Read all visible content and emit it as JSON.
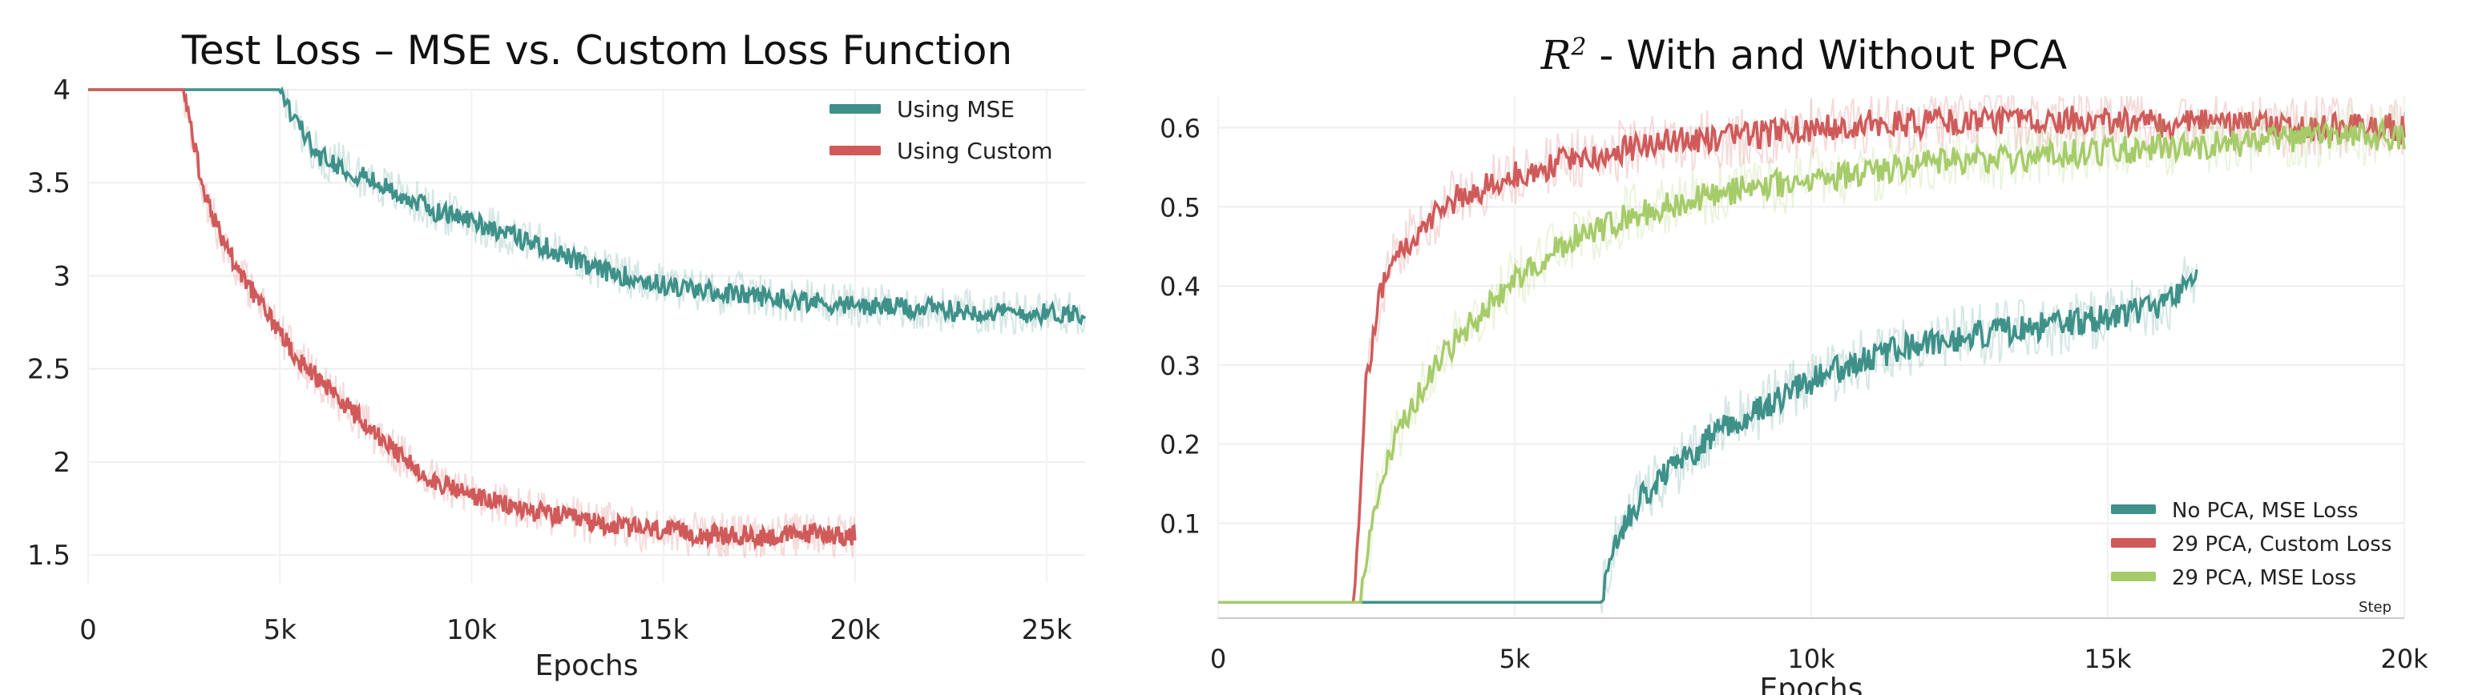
{
  "charts": {
    "left": {
      "title": "Test Loss – MSE vs. Custom Loss Function"
    },
    "right": {
      "title_math": "R",
      "title_sup": "2",
      "title_rest": " - With and Without PCA",
      "step_label": "Step"
    }
  },
  "colors": {
    "teal": "#3e9189",
    "red": "#d05a5a",
    "green": "#a6cc6a"
  },
  "chart_data": [
    {
      "type": "line",
      "title": "Test Loss – MSE vs. Custom Loss Function",
      "xlabel": "Epochs",
      "ylabel": "",
      "xlim": [
        0,
        26000
      ],
      "ylim": [
        1.35,
        4.0
      ],
      "xticks": [
        "0",
        "5k",
        "10k",
        "15k",
        "20k",
        "25k"
      ],
      "yticks": [
        "1.5",
        "2",
        "2.5",
        "3",
        "3.5",
        "4"
      ],
      "grid": true,
      "legend_position": "top-right",
      "series": [
        {
          "name": "Using MSE",
          "color": "#3e9189",
          "x": [
            0,
            5000,
            5500,
            6000,
            7000,
            8000,
            9000,
            10000,
            11000,
            12000,
            13000,
            14000,
            15000,
            16000,
            17000,
            18000,
            19000,
            20000,
            22000,
            24000,
            26000
          ],
          "y": [
            4.0,
            4.0,
            3.8,
            3.65,
            3.55,
            3.45,
            3.35,
            3.3,
            3.22,
            3.15,
            3.05,
            3.0,
            2.95,
            2.92,
            2.9,
            2.88,
            2.86,
            2.84,
            2.82,
            2.8,
            2.8
          ]
        },
        {
          "name": "Using Custom",
          "color": "#d05a5a",
          "x": [
            0,
            2500,
            3000,
            3500,
            4000,
            4500,
            5000,
            5500,
            6000,
            7000,
            8000,
            9000,
            10000,
            11000,
            12000,
            13000,
            14000,
            15000,
            16000,
            17000,
            18000,
            19000,
            20000
          ],
          "y": [
            4.0,
            4.0,
            3.45,
            3.2,
            3.0,
            2.85,
            2.7,
            2.55,
            2.45,
            2.25,
            2.05,
            1.9,
            1.82,
            1.76,
            1.72,
            1.68,
            1.65,
            1.63,
            1.61,
            1.6,
            1.6,
            1.62,
            1.6
          ]
        }
      ]
    },
    {
      "type": "line",
      "title": "R^2 - With and Without PCA",
      "xlabel": "Epochs",
      "ylabel": "",
      "xlim": [
        0,
        20000
      ],
      "ylim": [
        -0.02,
        0.64
      ],
      "xticks": [
        "0",
        "5k",
        "10k",
        "15k",
        "20k"
      ],
      "yticks": [
        "0.1",
        "0.2",
        "0.3",
        "0.4",
        "0.5",
        "0.6"
      ],
      "grid": true,
      "legend_position": "bottom-right",
      "series": [
        {
          "name": "No PCA, MSE Loss",
          "color": "#3e9189",
          "x": [
            0,
            6450,
            6600,
            7000,
            7500,
            8000,
            8500,
            9000,
            10000,
            11000,
            12000,
            13000,
            14000,
            15000,
            16000,
            16500
          ],
          "y": [
            0,
            0,
            0.06,
            0.12,
            0.16,
            0.19,
            0.22,
            0.24,
            0.28,
            0.31,
            0.33,
            0.34,
            0.35,
            0.36,
            0.38,
            0.42
          ]
        },
        {
          "name": "29 PCA, Custom Loss",
          "color": "#d05a5a",
          "x": [
            0,
            2300,
            2400,
            2500,
            2700,
            3000,
            3500,
            4000,
            5000,
            6000,
            7000,
            8000,
            9000,
            10000,
            11000,
            12000,
            13000,
            14000,
            15000,
            16000,
            17000,
            18000,
            19000,
            20000
          ],
          "y": [
            0,
            0,
            0.15,
            0.28,
            0.38,
            0.44,
            0.48,
            0.51,
            0.54,
            0.56,
            0.575,
            0.585,
            0.59,
            0.6,
            0.605,
            0.605,
            0.61,
            0.61,
            0.61,
            0.605,
            0.605,
            0.6,
            0.6,
            0.6
          ]
        },
        {
          "name": "29 PCA, MSE Loss",
          "color": "#a6cc6a",
          "x": [
            0,
            2400,
            2500,
            2700,
            3000,
            3500,
            4000,
            5000,
            6000,
            7000,
            8000,
            9000,
            10000,
            11000,
            12000,
            13000,
            14000,
            15000,
            16000,
            17000,
            18000,
            19000,
            20000
          ],
          "y": [
            0,
            0,
            0.05,
            0.14,
            0.21,
            0.28,
            0.33,
            0.41,
            0.46,
            0.49,
            0.51,
            0.525,
            0.535,
            0.545,
            0.555,
            0.56,
            0.565,
            0.57,
            0.575,
            0.58,
            0.585,
            0.59,
            0.59
          ]
        }
      ]
    }
  ],
  "legends": {
    "left": [
      "Using MSE",
      "Using Custom"
    ],
    "right": [
      "No PCA, MSE Loss",
      "29 PCA, Custom Loss",
      "29 PCA, MSE Loss"
    ]
  },
  "axes": {
    "left_xlabel": "Epochs",
    "right_xlabel": "Epochs"
  }
}
